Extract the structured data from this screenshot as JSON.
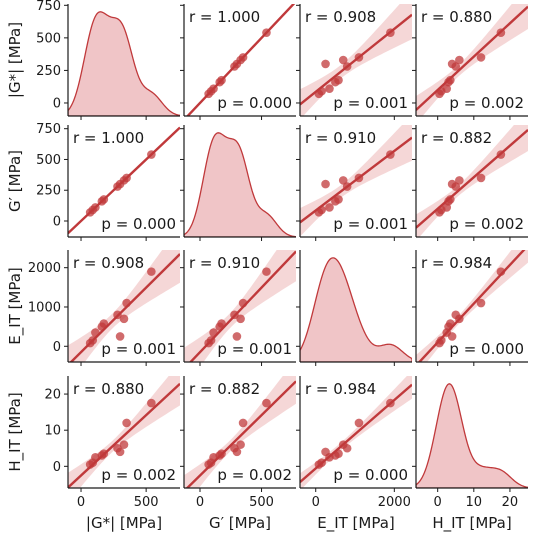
{
  "chart_data": {
    "type": "scatter",
    "layout": "pair-grid",
    "style": {
      "color": "#c0393b",
      "band_color": "#f1c9ca",
      "kde_fill": "#f0c5c7",
      "axis_color": "#1a1a1a"
    },
    "variables": [
      {
        "key": "G_star",
        "label": "|G*| [MPa]",
        "lim": [
          -100,
          760
        ],
        "ticks": [
          0,
          250,
          500,
          750
        ],
        "xticks": [
          0,
          500
        ],
        "values": [
          70,
          90,
          110,
          160,
          175,
          280,
          300,
          330,
          350,
          540
        ]
      },
      {
        "key": "G_prime",
        "label": "G′ [MPa]",
        "lim": [
          -130,
          780
        ],
        "ticks": [
          0,
          250,
          500,
          750
        ],
        "xticks": [
          0,
          500
        ],
        "values": [
          70,
          90,
          110,
          160,
          175,
          280,
          300,
          330,
          350,
          540
        ]
      },
      {
        "key": "E_IT",
        "label": "E_IT [MPa]",
        "lim": [
          -400,
          2450
        ],
        "ticks": [
          0,
          1000,
          2000
        ],
        "xticks": [
          0,
          2000
        ],
        "values": [
          80,
          150,
          350,
          500,
          580,
          800,
          250,
          700,
          1100,
          1900
        ]
      },
      {
        "key": "H_IT",
        "label": "H_IT [MPa]",
        "lim": [
          -6,
          25
        ],
        "ticks": [
          0,
          10,
          20
        ],
        "xticks": [
          0,
          10,
          20
        ],
        "values": [
          0.5,
          1,
          2.5,
          3,
          3.5,
          5,
          4,
          6,
          12,
          17.5
        ]
      }
    ],
    "correlations": [
      {
        "row": 0,
        "col": 1,
        "r": "r = 1.000",
        "p": "p = 0.000"
      },
      {
        "row": 0,
        "col": 2,
        "r": "r = 0.908",
        "p": "p = 0.001"
      },
      {
        "row": 0,
        "col": 3,
        "r": "r = 0.880",
        "p": "p = 0.002"
      },
      {
        "row": 1,
        "col": 0,
        "r": "r = 1.000",
        "p": "p = 0.000"
      },
      {
        "row": 1,
        "col": 2,
        "r": "r = 0.910",
        "p": "p = 0.001"
      },
      {
        "row": 1,
        "col": 3,
        "r": "r = 0.882",
        "p": "p = 0.002"
      },
      {
        "row": 2,
        "col": 0,
        "r": "r = 0.908",
        "p": "p = 0.001"
      },
      {
        "row": 2,
        "col": 1,
        "r": "r = 0.910",
        "p": "p = 0.001"
      },
      {
        "row": 2,
        "col": 3,
        "r": "r = 0.984",
        "p": "p = 0.000"
      },
      {
        "row": 3,
        "col": 0,
        "r": "r = 0.880",
        "p": "p = 0.002"
      },
      {
        "row": 3,
        "col": 1,
        "r": "r = 0.882",
        "p": "p = 0.002"
      },
      {
        "row": 3,
        "col": 2,
        "r": "r = 0.984",
        "p": "p = 0.000"
      }
    ]
  }
}
